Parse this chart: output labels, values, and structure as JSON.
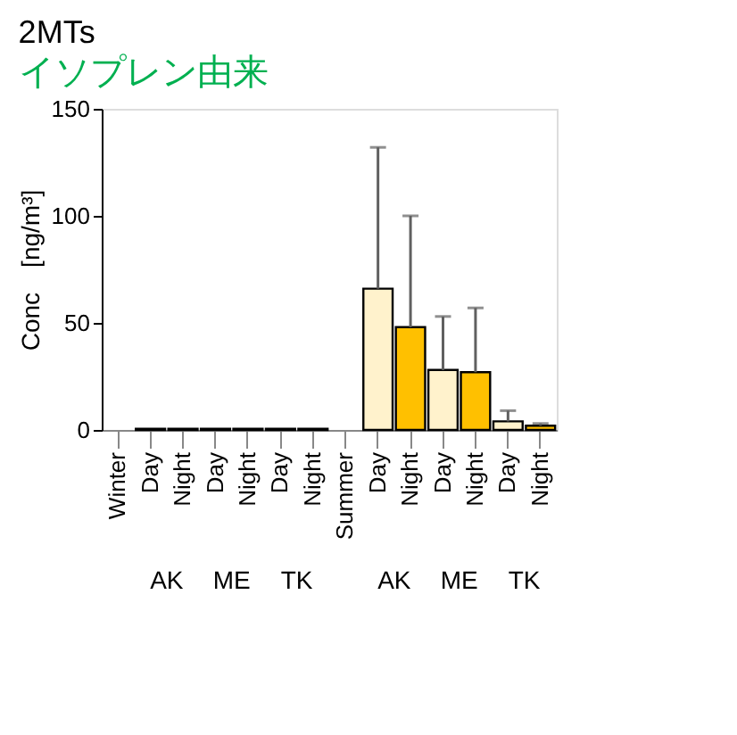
{
  "chart_data": {
    "type": "bar",
    "title": "2MTs",
    "subtitle": "イソプレン由来",
    "ylabel": "Conc　[ng/m³]",
    "categories": [
      "Winter",
      "Day",
      "Night",
      "Day",
      "Night",
      "Day",
      "Night",
      "Summer",
      "Day",
      "Night",
      "Day",
      "Night",
      "Day",
      "Night"
    ],
    "values": [
      null,
      0.5,
      0.5,
      0.5,
      0.5,
      0.5,
      0.5,
      null,
      66,
      48,
      28,
      27,
      4,
      2
    ],
    "colors": [
      "#fff2cc",
      "#fff2cc",
      "#ffc000",
      "#fff2cc",
      "#ffc000",
      "#fff2cc",
      "#ffc000",
      "#fff2cc",
      "#fff2cc",
      "#ffc000",
      "#fff2cc",
      "#ffc000",
      "#fff2cc",
      "#ffc000"
    ],
    "errors": [
      null,
      null,
      null,
      null,
      null,
      null,
      null,
      null,
      [
        66,
        132
      ],
      [
        48,
        100
      ],
      [
        28,
        53
      ],
      [
        27,
        57
      ],
      [
        4,
        9
      ],
      [
        2,
        3
      ]
    ],
    "annotations": [
      "AK",
      "ME",
      "TK",
      "AK",
      "ME",
      "TK"
    ],
    "ylim": [
      0,
      150
    ],
    "yticks": [
      0,
      50,
      100,
      150
    ],
    "grid": false
  }
}
